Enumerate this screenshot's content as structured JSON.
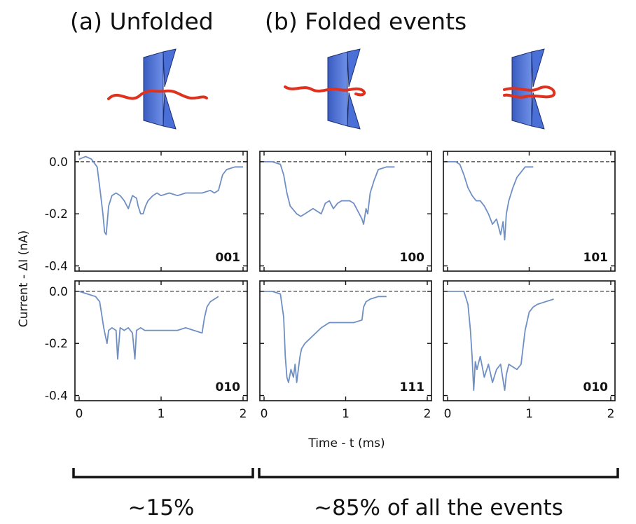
{
  "header": {
    "unfolded": "(a) Unfolded",
    "folded": "(b) Folded events"
  },
  "footer": {
    "unfolded_pct": "~15%",
    "folded_pct": "~85% of all the events"
  },
  "colors": {
    "trace": "#6f8fc4",
    "strand": "#e0301e",
    "pore": "#4a6fd6"
  },
  "chart_data": {
    "type": "line",
    "xlabel": "Time - t (ms)",
    "ylabel": "Current - ΔI (nA)",
    "ylim": [
      -0.42,
      0.04
    ],
    "yticks": [
      "0.0",
      "-0.2",
      "-0.4"
    ],
    "yticks_values": [
      0.0,
      -0.2,
      -0.4
    ],
    "xtick_labels": [
      "0",
      "1",
      "2"
    ],
    "baseline": 0.0,
    "panels": [
      {
        "label": "001",
        "xlim": [
          0,
          2
        ],
        "x": [
          0.0,
          0.08,
          0.15,
          0.22,
          0.26,
          0.29,
          0.31,
          0.33,
          0.36,
          0.4,
          0.45,
          0.5,
          0.55,
          0.6,
          0.65,
          0.7,
          0.72,
          0.75,
          0.78,
          0.81,
          0.84,
          0.87,
          0.9,
          0.95,
          1.0,
          1.1,
          1.2,
          1.3,
          1.4,
          1.5,
          1.6,
          1.65,
          1.7,
          1.75,
          1.8,
          1.9,
          2.0
        ],
        "y": [
          0.01,
          0.02,
          0.01,
          -0.02,
          -0.12,
          -0.2,
          -0.27,
          -0.28,
          -0.17,
          -0.13,
          -0.12,
          -0.13,
          -0.15,
          -0.18,
          -0.13,
          -0.14,
          -0.17,
          -0.2,
          -0.2,
          -0.17,
          -0.15,
          -0.14,
          -0.13,
          -0.12,
          -0.13,
          -0.12,
          -0.13,
          -0.12,
          -0.12,
          -0.12,
          -0.11,
          -0.12,
          -0.11,
          -0.05,
          -0.03,
          -0.02,
          -0.02
        ]
      },
      {
        "label": "100",
        "xlim": [
          0,
          2
        ],
        "x": [
          0.0,
          0.1,
          0.2,
          0.24,
          0.28,
          0.32,
          0.4,
          0.45,
          0.5,
          0.6,
          0.7,
          0.75,
          0.8,
          0.85,
          0.9,
          0.95,
          1.0,
          1.05,
          1.1,
          1.15,
          1.2,
          1.22,
          1.25,
          1.27,
          1.3,
          1.35,
          1.4,
          1.5,
          1.6
        ],
        "y": [
          0.0,
          0.0,
          -0.01,
          -0.05,
          -0.12,
          -0.17,
          -0.2,
          -0.21,
          -0.2,
          -0.18,
          -0.2,
          -0.16,
          -0.15,
          -0.18,
          -0.16,
          -0.15,
          -0.15,
          -0.15,
          -0.16,
          -0.19,
          -0.22,
          -0.24,
          -0.18,
          -0.2,
          -0.12,
          -0.07,
          -0.03,
          -0.02,
          -0.02
        ]
      },
      {
        "label": "101",
        "xlim": [
          0,
          2
        ],
        "x": [
          0.0,
          0.1,
          0.15,
          0.2,
          0.25,
          0.3,
          0.35,
          0.4,
          0.45,
          0.5,
          0.55,
          0.6,
          0.65,
          0.68,
          0.7,
          0.72,
          0.75,
          0.8,
          0.85,
          0.9,
          0.95,
          1.0,
          1.05
        ],
        "y": [
          0.0,
          0.0,
          -0.01,
          -0.05,
          -0.1,
          -0.13,
          -0.15,
          -0.15,
          -0.17,
          -0.2,
          -0.24,
          -0.22,
          -0.28,
          -0.23,
          -0.3,
          -0.2,
          -0.15,
          -0.1,
          -0.06,
          -0.04,
          -0.02,
          -0.02,
          -0.02
        ]
      },
      {
        "label": "010",
        "xlim": [
          0,
          2
        ],
        "x": [
          0.0,
          0.1,
          0.2,
          0.25,
          0.28,
          0.3,
          0.32,
          0.34,
          0.36,
          0.4,
          0.45,
          0.47,
          0.5,
          0.55,
          0.6,
          0.65,
          0.68,
          0.7,
          0.75,
          0.8,
          0.9,
          1.0,
          1.1,
          1.2,
          1.3,
          1.4,
          1.5,
          1.53,
          1.56,
          1.6,
          1.7
        ],
        "y": [
          0.0,
          -0.01,
          -0.02,
          -0.04,
          -0.1,
          -0.14,
          -0.17,
          -0.2,
          -0.15,
          -0.14,
          -0.15,
          -0.26,
          -0.14,
          -0.15,
          -0.14,
          -0.16,
          -0.26,
          -0.15,
          -0.14,
          -0.15,
          -0.15,
          -0.15,
          -0.15,
          -0.15,
          -0.14,
          -0.15,
          -0.16,
          -0.1,
          -0.06,
          -0.04,
          -0.02
        ]
      },
      {
        "label": "111",
        "xlim": [
          0,
          2
        ],
        "x": [
          0.0,
          0.1,
          0.2,
          0.24,
          0.26,
          0.28,
          0.3,
          0.33,
          0.36,
          0.38,
          0.4,
          0.42,
          0.44,
          0.46,
          0.5,
          0.6,
          0.7,
          0.8,
          0.9,
          1.0,
          1.1,
          1.2,
          1.22,
          1.25,
          1.3,
          1.4,
          1.5
        ],
        "y": [
          0.0,
          0.0,
          -0.01,
          -0.1,
          -0.25,
          -0.33,
          -0.35,
          -0.3,
          -0.33,
          -0.28,
          -0.35,
          -0.3,
          -0.25,
          -0.22,
          -0.2,
          -0.17,
          -0.14,
          -0.12,
          -0.12,
          -0.12,
          -0.12,
          -0.11,
          -0.06,
          -0.04,
          -0.03,
          -0.02,
          -0.02
        ]
      },
      {
        "label": "010",
        "xlim": [
          0,
          2
        ],
        "x": [
          0.0,
          0.1,
          0.2,
          0.25,
          0.28,
          0.3,
          0.32,
          0.34,
          0.36,
          0.4,
          0.45,
          0.5,
          0.55,
          0.6,
          0.65,
          0.7,
          0.72,
          0.75,
          0.8,
          0.85,
          0.9,
          0.95,
          1.0,
          1.05,
          1.1,
          1.2,
          1.3
        ],
        "y": [
          0.0,
          0.0,
          0.0,
          -0.05,
          -0.15,
          -0.25,
          -0.38,
          -0.27,
          -0.3,
          -0.25,
          -0.33,
          -0.28,
          -0.35,
          -0.3,
          -0.28,
          -0.38,
          -0.32,
          -0.28,
          -0.29,
          -0.3,
          -0.28,
          -0.15,
          -0.08,
          -0.06,
          -0.05,
          -0.04,
          -0.03
        ]
      }
    ]
  }
}
